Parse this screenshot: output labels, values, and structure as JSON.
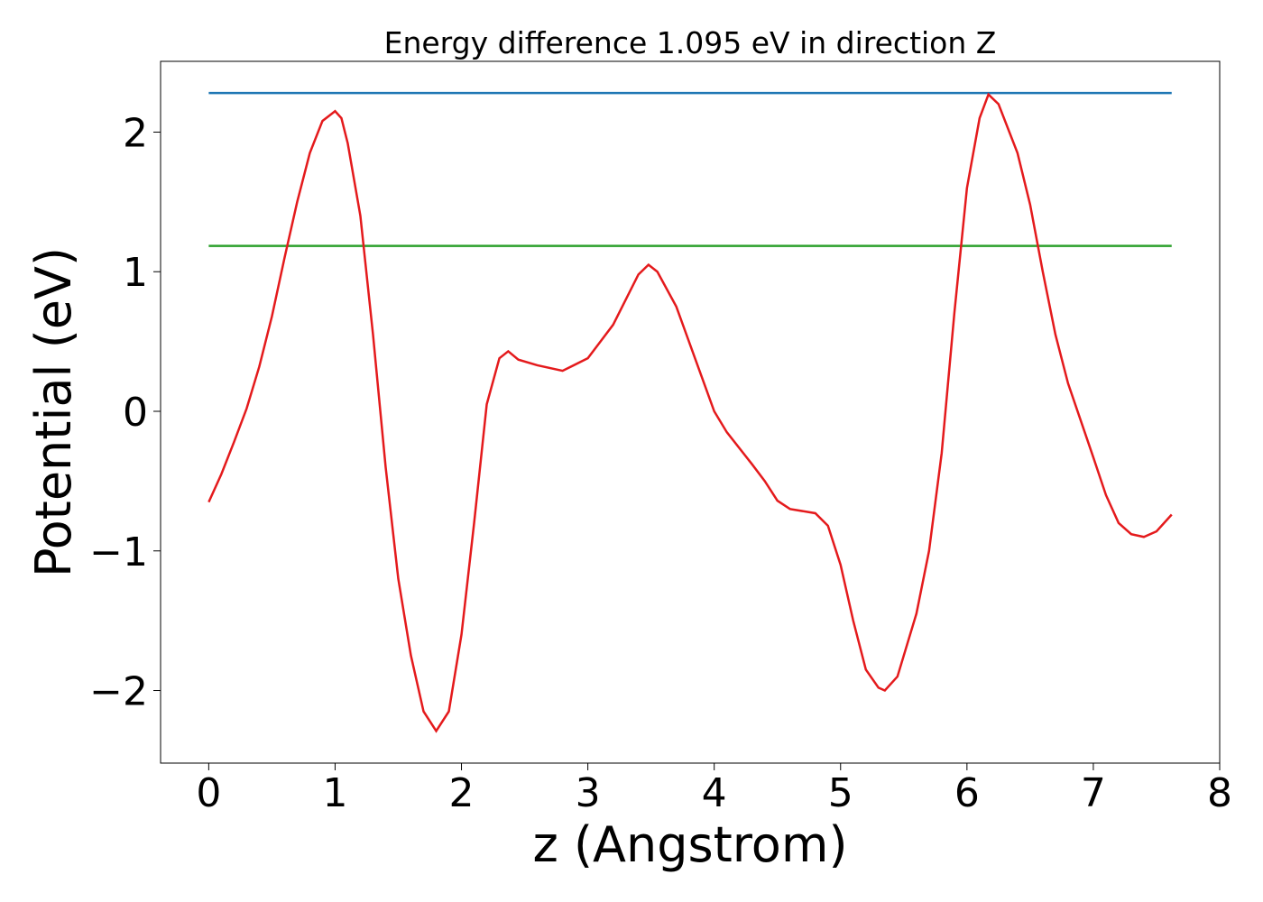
{
  "chart_data": {
    "type": "line",
    "title": "Energy difference 1.095 eV in direction Z",
    "x_label": "z (Angstrom)",
    "y_label": "Potential (eV)",
    "xlim": [
      -0.381,
      8.0
    ],
    "ylim": [
      -2.52,
      2.507
    ],
    "xticks": [
      0,
      1,
      2,
      3,
      4,
      5,
      6,
      7,
      8
    ],
    "yticks": [
      {
        "value": -2,
        "label": "−2"
      },
      {
        "value": -1,
        "label": "−1"
      },
      0,
      1,
      2
    ],
    "series": [
      {
        "color": "#1f77b4",
        "x": [
          0,
          7.62
        ],
        "values": [
          2.28,
          2.28
        ]
      },
      {
        "color": "#2ca02c",
        "x": [
          0,
          7.62
        ],
        "values": [
          1.185,
          1.185
        ]
      },
      {
        "color": "#e41a1c",
        "x": [
          0,
          0.1,
          0.2,
          0.3,
          0.4,
          0.5,
          0.6,
          0.7,
          0.8,
          0.9,
          1.0,
          1.05,
          1.1,
          1.2,
          1.3,
          1.4,
          1.5,
          1.6,
          1.7,
          1.8,
          1.9,
          2.0,
          2.1,
          2.2,
          2.3,
          2.37,
          2.45,
          2.6,
          2.8,
          3.0,
          3.2,
          3.4,
          3.48,
          3.55,
          3.7,
          3.9,
          4.0,
          4.1,
          4.3,
          4.4,
          4.5,
          4.6,
          4.8,
          4.9,
          5.0,
          5.1,
          5.2,
          5.3,
          5.35,
          5.45,
          5.6,
          5.7,
          5.8,
          5.9,
          6.0,
          6.1,
          6.17,
          6.25,
          6.4,
          6.5,
          6.6,
          6.7,
          6.8,
          7.0,
          7.1,
          7.2,
          7.3,
          7.4,
          7.5,
          7.62
        ],
        "values": [
          -0.65,
          -0.45,
          -0.22,
          0.02,
          0.32,
          0.68,
          1.1,
          1.5,
          1.85,
          2.08,
          2.15,
          2.1,
          1.92,
          1.4,
          0.55,
          -0.4,
          -1.2,
          -1.75,
          -2.15,
          -2.29,
          -2.15,
          -1.6,
          -0.8,
          0.05,
          0.38,
          0.43,
          0.37,
          0.33,
          0.29,
          0.38,
          0.62,
          0.98,
          1.05,
          1.0,
          0.75,
          0.25,
          0.0,
          -0.15,
          -0.38,
          -0.5,
          -0.64,
          -0.7,
          -0.73,
          -0.82,
          -1.1,
          -1.5,
          -1.85,
          -1.98,
          -2.0,
          -1.9,
          -1.45,
          -1.0,
          -0.3,
          0.7,
          1.6,
          2.1,
          2.27,
          2.2,
          1.85,
          1.48,
          1.0,
          0.55,
          0.2,
          -0.33,
          -0.6,
          -0.8,
          -0.88,
          -0.9,
          -0.86,
          -0.74
        ]
      }
    ]
  }
}
